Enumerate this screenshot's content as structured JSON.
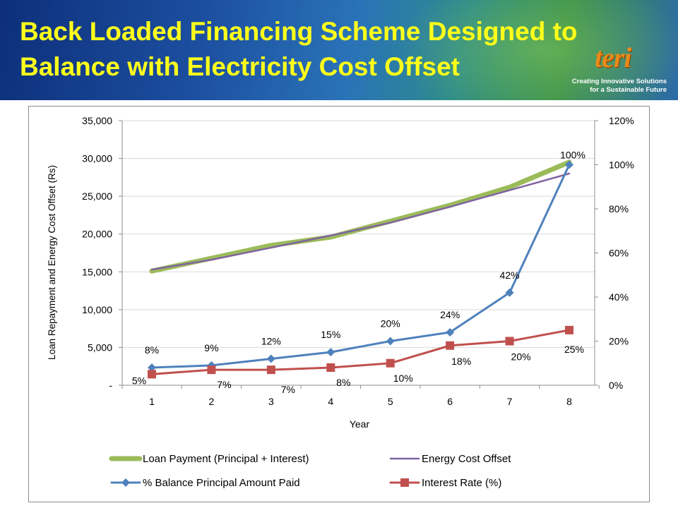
{
  "slide": {
    "title": "Back Loaded Financing Scheme Designed to Balance with Electricity Cost Offset",
    "logo_text": "teri",
    "logo_tagline_line1": "Creating Innovative Solutions",
    "logo_tagline_line2": "for a Sustainable Future"
  },
  "chart_data": {
    "type": "line",
    "xlabel": "Year",
    "ylabel": "Loan Repayment and Energy Cost Offset (Rs)",
    "x": [
      1,
      2,
      3,
      4,
      5,
      6,
      7,
      8
    ],
    "x_tick_labels": [
      "1",
      "2",
      "3",
      "4",
      "5",
      "6",
      "7",
      "8"
    ],
    "y_left_range": [
      0,
      35000
    ],
    "y_left_tick_labels": [
      "-",
      "5,000",
      "10,000",
      "15,000",
      "20,000",
      "25,000",
      "30,000",
      "35,000"
    ],
    "y_left_tick_values": [
      0,
      5000,
      10000,
      15000,
      20000,
      25000,
      30000,
      35000
    ],
    "y_right_range": [
      0,
      120
    ],
    "y_right_tick_labels": [
      "0%",
      "20%",
      "40%",
      "60%",
      "80%",
      "100%",
      "120%"
    ],
    "y_right_tick_values": [
      0,
      20,
      40,
      60,
      80,
      100,
      120
    ],
    "grid": "horizontal",
    "legend_position": "bottom",
    "series": [
      {
        "name": "Loan Payment (Principal + Interest)",
        "axis": "left",
        "color": "#9bbb59",
        "marker": "none",
        "values": [
          15100,
          16800,
          18500,
          19600,
          21700,
          23800,
          26200,
          29500
        ]
      },
      {
        "name": "Energy Cost Offset",
        "axis": "left",
        "color": "#8064a2",
        "marker": "none",
        "values": [
          15300,
          16600,
          18200,
          19800,
          21500,
          23600,
          25800,
          28000
        ]
      },
      {
        "name": "% Balance Principal Amount Paid",
        "axis": "right",
        "color": "#4f81bd",
        "marker": "diamond",
        "values": [
          8,
          9,
          12,
          15,
          20,
          24,
          42,
          100
        ],
        "data_labels": [
          "8%",
          "9%",
          "12%",
          "15%",
          "20%",
          "24%",
          "42%",
          "100%"
        ]
      },
      {
        "name": "Interest Rate (%)",
        "axis": "right",
        "color": "#c0504d",
        "marker": "square",
        "values": [
          5,
          7,
          7,
          8,
          10,
          18,
          20,
          25
        ],
        "data_labels": [
          "5%",
          "7%",
          "7%",
          "8%",
          "10%",
          "18%",
          "20%",
          "25%"
        ]
      }
    ]
  }
}
